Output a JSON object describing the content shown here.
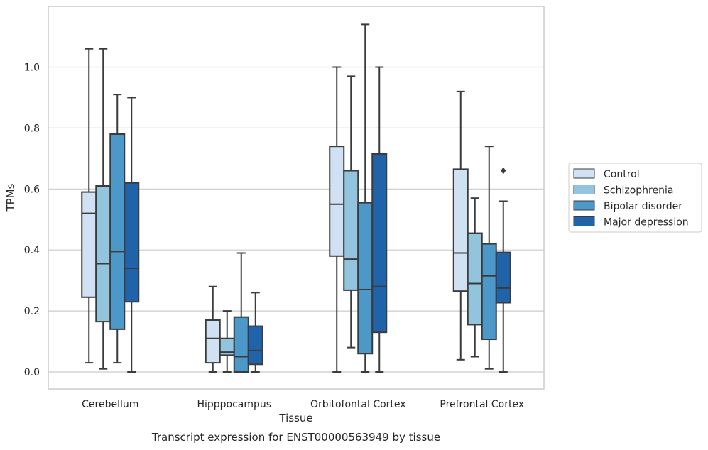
{
  "chart_data": {
    "type": "boxplot",
    "xlabel": "Tissue",
    "ylabel": "TPMs",
    "caption": "Transcript expression for ENST00000563949 by tissue",
    "ylim": [
      -0.055,
      1.2
    ],
    "yticks": [
      "0.0",
      "0.2",
      "0.4",
      "0.6",
      "0.8",
      "1.0"
    ],
    "yticks_values": [
      0.0,
      0.2,
      0.4,
      0.6,
      0.8,
      1.0
    ],
    "grid": "horizontal",
    "legend_position": "right",
    "categories": [
      "Cerebellum",
      "Hipppocampus",
      "Orbitofontal Cortex",
      "Prefrontal Cortex"
    ],
    "series": [
      {
        "name": "Control",
        "color": "#cfe1f2",
        "boxes": [
          {
            "whisker_low": 0.03,
            "q1": 0.245,
            "median": 0.52,
            "q3": 0.59,
            "whisker_high": 1.06
          },
          {
            "whisker_low": 0.0,
            "q1": 0.03,
            "median": 0.11,
            "q3": 0.17,
            "whisker_high": 0.28
          },
          {
            "whisker_low": 0.0,
            "q1": 0.38,
            "median": 0.55,
            "q3": 0.74,
            "whisker_high": 1.0
          },
          {
            "whisker_low": 0.04,
            "q1": 0.265,
            "median": 0.39,
            "q3": 0.665,
            "whisker_high": 0.92
          }
        ]
      },
      {
        "name": "Schizophrenia",
        "color": "#93c4de",
        "boxes": [
          {
            "whisker_low": 0.01,
            "q1": 0.165,
            "median": 0.355,
            "q3": 0.61,
            "whisker_high": 1.06
          },
          {
            "whisker_low": 0.0,
            "q1": 0.055,
            "median": 0.065,
            "q3": 0.11,
            "whisker_high": 0.2
          },
          {
            "whisker_low": 0.08,
            "q1": 0.268,
            "median": 0.37,
            "q3": 0.66,
            "whisker_high": 0.97
          },
          {
            "whisker_low": 0.05,
            "q1": 0.155,
            "median": 0.29,
            "q3": 0.455,
            "whisker_high": 0.57
          }
        ]
      },
      {
        "name": "Bipolar disorder",
        "color": "#4b98c9",
        "boxes": [
          {
            "whisker_low": 0.03,
            "q1": 0.14,
            "median": 0.395,
            "q3": 0.78,
            "whisker_high": 0.91
          },
          {
            "whisker_low": 0.0,
            "q1": 0.0,
            "median": 0.05,
            "q3": 0.18,
            "whisker_high": 0.39
          },
          {
            "whisker_low": 0.0,
            "q1": 0.06,
            "median": 0.27,
            "q3": 0.555,
            "whisker_high": 1.14
          },
          {
            "whisker_low": 0.01,
            "q1": 0.107,
            "median": 0.315,
            "q3": 0.42,
            "whisker_high": 0.74
          }
        ]
      },
      {
        "name": "Major depression",
        "color": "#2163a9",
        "boxes": [
          {
            "whisker_low": 0.0,
            "q1": 0.23,
            "median": 0.34,
            "q3": 0.62,
            "whisker_high": 0.9
          },
          {
            "whisker_low": 0.0,
            "q1": 0.025,
            "median": 0.07,
            "q3": 0.15,
            "whisker_high": 0.26
          },
          {
            "whisker_low": 0.0,
            "q1": 0.13,
            "median": 0.28,
            "q3": 0.715,
            "whisker_high": 1.0
          },
          {
            "whisker_low": 0.0,
            "q1": 0.227,
            "median": 0.275,
            "q3": 0.392,
            "whisker_high": 0.56,
            "outliers": [
              0.66
            ]
          }
        ]
      }
    ]
  }
}
